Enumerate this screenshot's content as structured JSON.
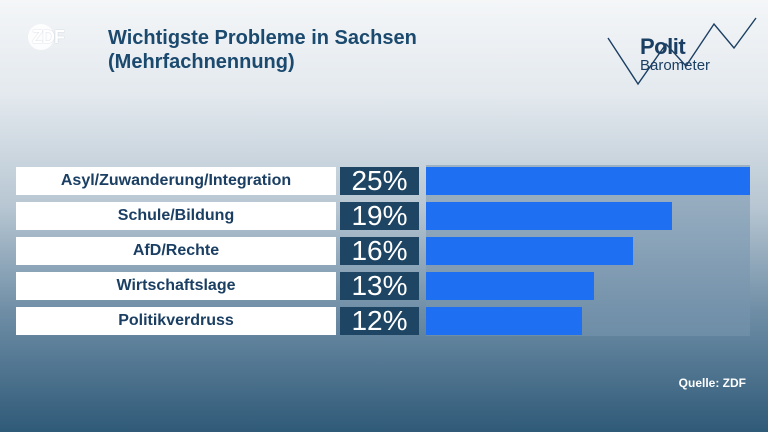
{
  "brand": {
    "logo_text": "ZDF",
    "logo_right": {
      "line1": "Polit",
      "line2": "Barometer"
    }
  },
  "header": {
    "title_line1": "Wichtigste Probleme in Sachsen",
    "title_line2": "(Mehrfachnennung)"
  },
  "footer": {
    "source": "Quelle: ZDF"
  },
  "colors": {
    "bar": "#1f6ff2",
    "label_bg": "#ffffff",
    "value_bg": "#1e4563",
    "title": "#1b4a6e"
  },
  "chart_data": {
    "type": "bar",
    "orientation": "horizontal",
    "categories": [
      "Asyl/Zuwanderung/Integration",
      "Schule/Bildung",
      "AfD/Rechte",
      "Wirtschaftslage",
      "Politikverdruss"
    ],
    "values": [
      25,
      19,
      16,
      13,
      12
    ],
    "value_labels": [
      "25%",
      "19%",
      "16%",
      "13%",
      "12%"
    ],
    "unit": "%",
    "xlim": [
      0,
      25
    ],
    "grid": false,
    "legend": "none"
  }
}
